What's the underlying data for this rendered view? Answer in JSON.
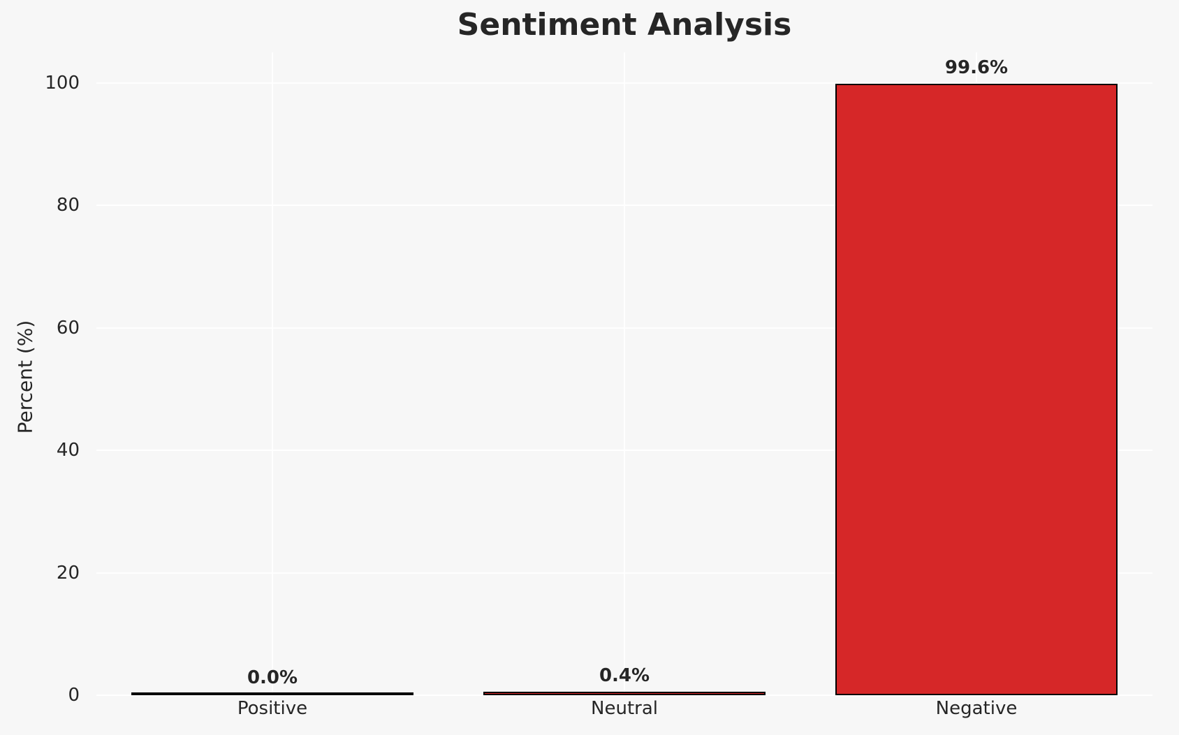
{
  "chart_data": {
    "type": "bar",
    "title": "Sentiment Analysis",
    "ylabel": "Percent (%)",
    "xlabel": "",
    "categories": [
      "Positive",
      "Neutral",
      "Negative"
    ],
    "values": [
      0.0,
      0.4,
      99.6
    ],
    "value_labels": [
      "0.0%",
      "0.4%",
      "99.6%"
    ],
    "yticks": [
      0,
      20,
      40,
      60,
      80,
      100
    ],
    "ylim": [
      0,
      105
    ],
    "grid": true,
    "legend_position": "none",
    "bar_fill_color": "#d62728",
    "bar_edge_color": "#000000",
    "background_color": "#f7f7f7",
    "gridline_color": "#ffffff",
    "text_color": "#262626"
  }
}
